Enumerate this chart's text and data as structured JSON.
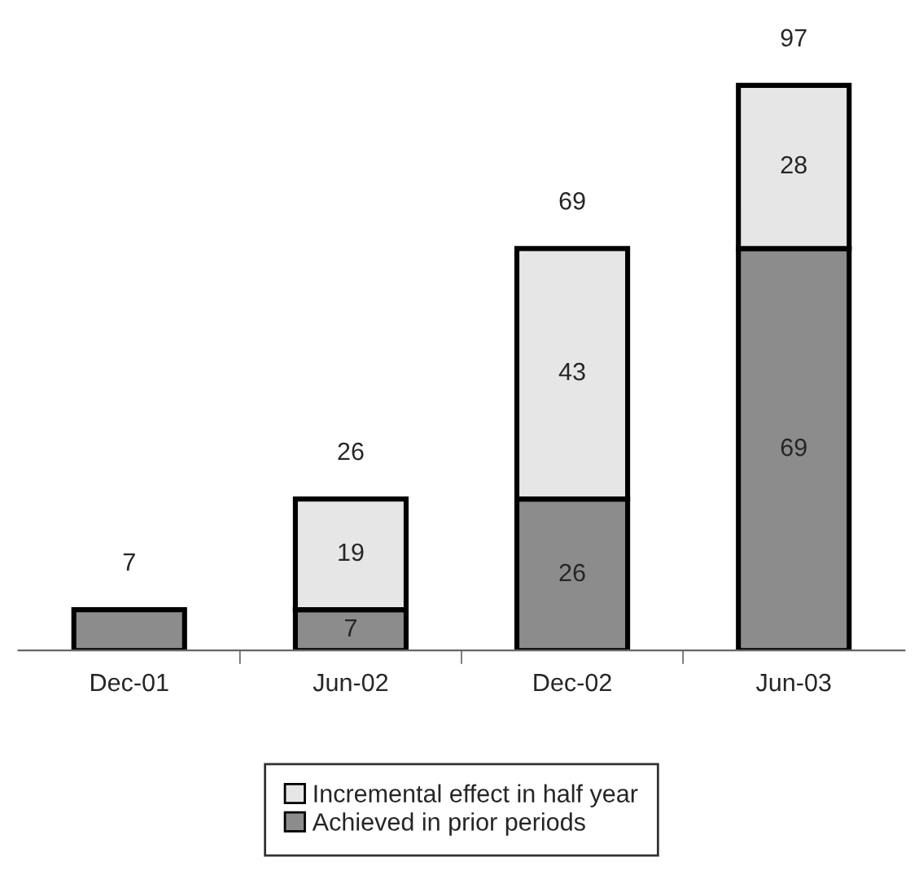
{
  "chart_data": {
    "type": "bar",
    "stacked": true,
    "categories": [
      "Dec-01",
      "Jun-02",
      "Dec-02",
      "Jun-03"
    ],
    "series": [
      {
        "name": "Achieved in prior periods",
        "color": "#8c8c8c",
        "values": [
          7,
          7,
          26,
          69
        ],
        "value_labels": [
          null,
          "7",
          "26",
          "69"
        ]
      },
      {
        "name": "Incremental effect in half year",
        "color": "#e6e6e6",
        "values": [
          null,
          19,
          43,
          28
        ],
        "value_labels": [
          null,
          "19",
          "43",
          "28"
        ]
      }
    ],
    "totals": [
      "7",
      "26",
      "69",
      "97"
    ],
    "legend": "bottom",
    "grid": false
  }
}
